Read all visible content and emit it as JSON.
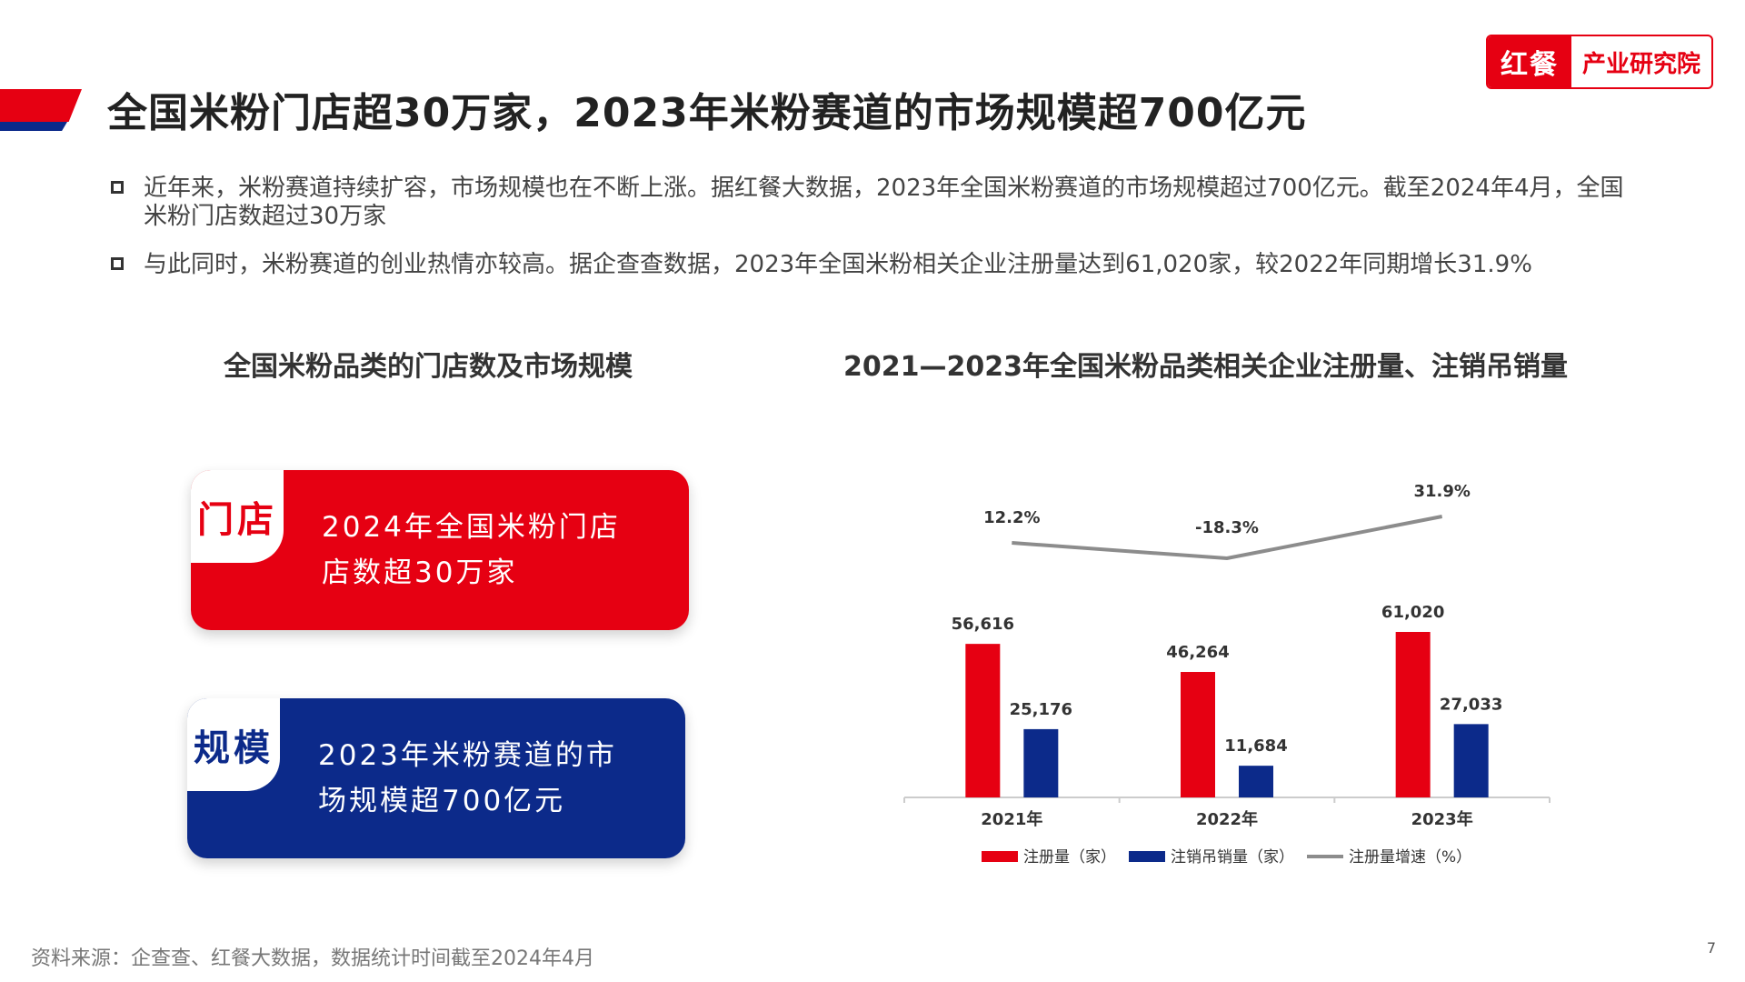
{
  "header": {
    "title": "全国米粉门店超30万家，2023年米粉赛道的市场规模超700亿元",
    "logo_mark": "红餐",
    "logo_name": "产业研究院"
  },
  "bullets": [
    "近年来，米粉赛道持续扩容，市场规模也在不断上涨。据红餐大数据，2023年全国米粉赛道的市场规模超过700亿元。截至2024年4月，全国米粉门店数超过30万家",
    "与此同时，米粉赛道的创业热情亦较高。据企查查数据，2023年全国米粉相关企业注册量达到61,020家，较2022年同期增长31.9%"
  ],
  "left_section": {
    "title": "全国米粉品类的门店数及市场规模",
    "cards": [
      {
        "tag": "门店",
        "line1": "2024年全国米粉门店",
        "line2": "店数超30万家"
      },
      {
        "tag": "规模",
        "line1": "2023年米粉赛道的市",
        "line2": "场规模超700亿元"
      }
    ]
  },
  "right_section": {
    "title": "2021—2023年全国米粉品类相关企业注册量、注销吊销量"
  },
  "chart_data": {
    "type": "bar",
    "categories": [
      "2021年",
      "2022年",
      "2023年"
    ],
    "series": [
      {
        "name": "注册量（家）",
        "type": "bar",
        "color": "#e60012",
        "values": [
          56616,
          46264,
          61020
        ],
        "labels": [
          "56,616",
          "46,264",
          "61,020"
        ]
      },
      {
        "name": "注销吊销量（家）",
        "type": "bar",
        "color": "#0c2a8a",
        "values": [
          25176,
          11684,
          27033
        ],
        "labels": [
          "25,176",
          "11,684",
          "27,033"
        ]
      },
      {
        "name": "注册量增速（%）",
        "type": "line",
        "color": "#8c8c8c",
        "values": [
          12.2,
          -18.3,
          31.9
        ],
        "labels": [
          "12.2%",
          "-18.3%",
          "31.9%"
        ]
      }
    ],
    "legend_position": "bottom",
    "grid": false
  },
  "footer": {
    "source": "资料来源：企查查、红餐大数据，数据统计时间截至2024年4月",
    "page_number": "7"
  }
}
